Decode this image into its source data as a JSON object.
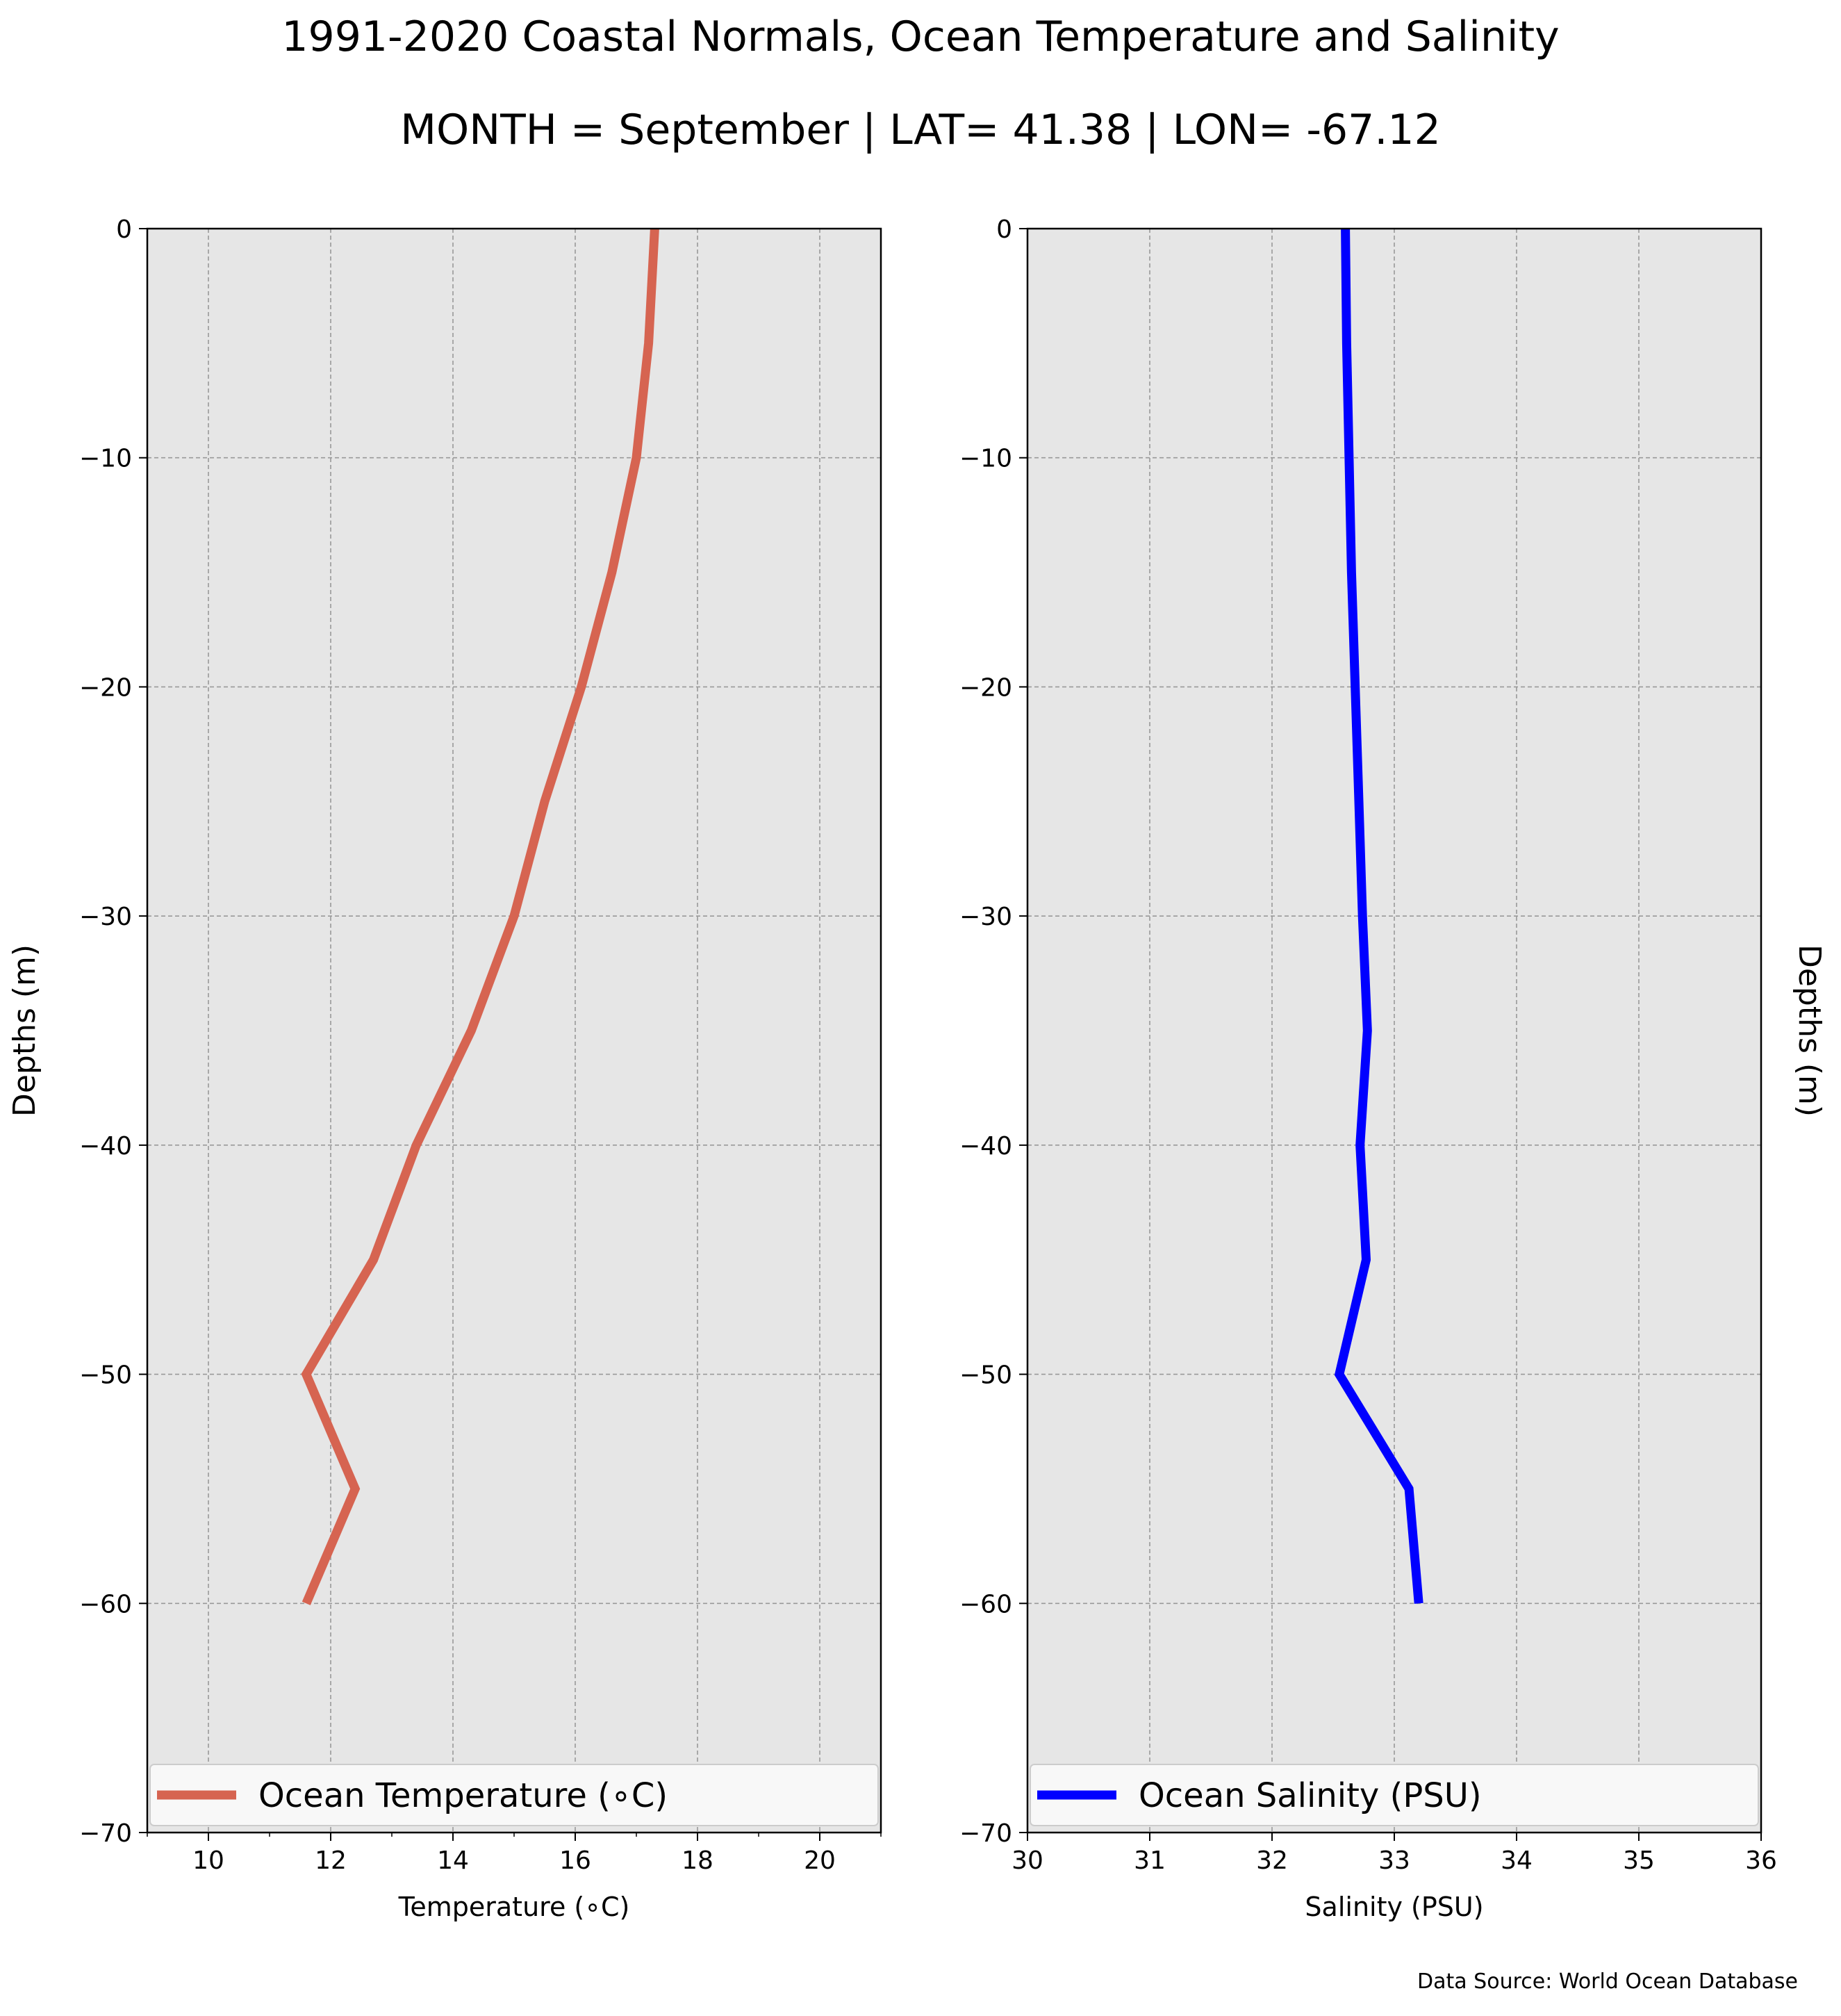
{
  "figure": {
    "title": "1991-2020 Coastal Normals, Ocean Temperature and Salinity",
    "subtitle": "MONTH = September | LAT= 41.38 | LON= -67.12",
    "source": "Data Source: World Ocean Database"
  },
  "colors": {
    "plot_background": "#e6e6e6",
    "grid": "#999999",
    "temperature_line": "#d66451",
    "salinity_line": "#0000ff"
  },
  "chart_data": [
    {
      "type": "line",
      "orientation": "vertical-profile",
      "xlabel": "Temperature (∘C)",
      "ylabel": "Depths (m)",
      "xlim": [
        9,
        21
      ],
      "ylim": [
        -70,
        0
      ],
      "xticks": [
        10,
        12,
        14,
        16,
        18,
        20
      ],
      "yticks": [
        0,
        -10,
        -20,
        -30,
        -40,
        -50,
        -60,
        -70
      ],
      "grid": true,
      "legend_position": "bottom",
      "series": [
        {
          "name": "Ocean Temperature (∘C)",
          "x": [
            17.3,
            17.2,
            17.0,
            16.6,
            16.1,
            15.5,
            15.0,
            14.3,
            13.4,
            12.7,
            11.6,
            12.4,
            11.6
          ],
          "y": [
            0,
            -5,
            -10,
            -15,
            -20,
            -25,
            -30,
            -35,
            -40,
            -45,
            -50,
            -55,
            -60
          ]
        }
      ]
    },
    {
      "type": "line",
      "orientation": "vertical-profile",
      "xlabel": "Salinity (PSU)",
      "ylabel": "Depths (m)",
      "xlim": [
        30,
        36
      ],
      "ylim": [
        -70,
        0
      ],
      "xticks": [
        30,
        31,
        32,
        33,
        34,
        35,
        36
      ],
      "yticks": [
        0,
        -10,
        -20,
        -30,
        -40,
        -50,
        -60,
        -70
      ],
      "grid": true,
      "legend_position": "bottom",
      "series": [
        {
          "name": "Ocean Salinity (PSU)",
          "x": [
            32.6,
            32.61,
            32.63,
            32.65,
            32.68,
            32.71,
            32.74,
            32.78,
            32.72,
            32.77,
            32.55,
            33.12,
            33.2
          ],
          "y": [
            0,
            -5,
            -10,
            -15,
            -20,
            -25,
            -30,
            -35,
            -40,
            -45,
            -50,
            -55,
            -60
          ]
        }
      ]
    }
  ]
}
